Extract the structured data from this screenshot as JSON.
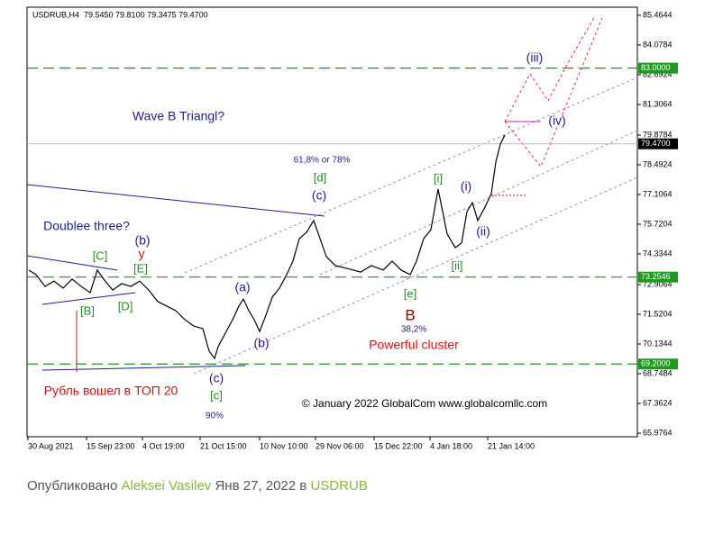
{
  "header": {
    "title": "USDRUB,H4  79.5450 79.8100 79.3475 79.4700"
  },
  "chart_data": {
    "type": "line",
    "x": [
      2,
      10,
      20,
      30,
      40,
      50,
      60,
      70,
      78,
      85,
      95,
      105,
      115,
      125,
      135,
      145,
      155,
      165,
      175,
      185,
      195,
      202,
      208,
      212,
      220,
      228,
      235,
      240,
      246,
      252,
      258,
      265,
      272,
      280,
      288,
      295,
      302,
      310,
      318,
      325,
      332,
      342,
      355,
      370,
      382,
      395,
      405,
      415,
      425,
      432,
      440,
      448,
      456,
      460,
      466,
      475,
      482,
      488,
      494,
      500,
      508,
      515,
      520,
      525,
      530
    ],
    "series": [
      {
        "color": "#000000",
        "values": [
          73.58,
          73.37,
          72.82,
          73.07,
          72.74,
          73.16,
          72.82,
          72.53,
          73.58,
          73.16,
          72.65,
          72.95,
          72.82,
          73.07,
          72.65,
          72.11,
          71.9,
          71.69,
          71.27,
          70.97,
          70.85,
          69.8,
          69.46,
          70.01,
          70.64,
          71.27,
          71.9,
          72.23,
          71.69,
          71.27,
          70.72,
          71.48,
          72.32,
          72.74,
          73.37,
          74.0,
          75.05,
          75.34,
          75.89,
          75.05,
          74.21,
          73.79,
          73.66,
          73.49,
          73.79,
          73.58,
          74.0,
          73.58,
          73.37,
          74.0,
          75.05,
          75.47,
          77.36,
          76.52,
          75.26,
          74.63,
          74.84,
          76.31,
          76.73,
          75.89,
          76.52,
          77.15,
          78.62,
          79.46,
          79.88
        ]
      }
    ],
    "xlim": [
      0,
      677
    ],
    "ylim": [
      65.81,
      85.84
    ],
    "xticks": [
      {
        "value": 1,
        "label": "30 Aug 2021"
      },
      {
        "value": 66,
        "label": "15 Sep 23:00"
      },
      {
        "value": 128,
        "label": "4 Oct 19:00"
      },
      {
        "value": 192,
        "label": "21 Oct 15:00"
      },
      {
        "value": 258,
        "label": "10 Nov 10:00"
      },
      {
        "value": 320,
        "label": "29 Nov 06:00"
      },
      {
        "value": 385,
        "label": "15 Dec 22:00"
      },
      {
        "value": 447,
        "label": "4 Jan 18:00"
      },
      {
        "value": 511,
        "label": "21 Jan 14:00"
      }
    ],
    "yticks": [
      85.4644,
      84.0784,
      82.6924,
      81.3064,
      79.8784,
      78.4924,
      77.1064,
      75.7204,
      74.3344,
      72.9064,
      71.5204,
      70.1344,
      68.7484,
      67.3624,
      65.9764
    ],
    "levels": [
      {
        "value": 83,
        "label": "83.0000"
      },
      {
        "value": 73.2546,
        "label": "73.2546"
      },
      {
        "value": 69.2,
        "label": "69.2000"
      }
    ],
    "last_price": {
      "value": 79.47,
      "label": "79.4700"
    },
    "annotations": [
      "(iii)",
      "(iv)",
      "Wave B Triangl?",
      "61,8% or 78%",
      "[d]",
      "(c)",
      "[i]",
      "(i)",
      "(ii)",
      "[ii]",
      "[e]",
      "B",
      "38,2%",
      "Powerful cluster",
      "Doublee three?",
      "(b)",
      "y",
      "[C]",
      "[E]",
      "[B]",
      "[D]",
      "(a)",
      "(b)",
      "(c)",
      "[c]",
      "90%",
      "Рубль вошел в ТОП 20",
      "© January 2022 GlobalCom www.globalcomllc.com"
    ]
  },
  "footer": {
    "prefix": "Опубликовано",
    "author": "Aleksei Vasilev",
    "date": "Янв 27, 2022",
    "in": "в",
    "symbol": "USDRUB"
  }
}
